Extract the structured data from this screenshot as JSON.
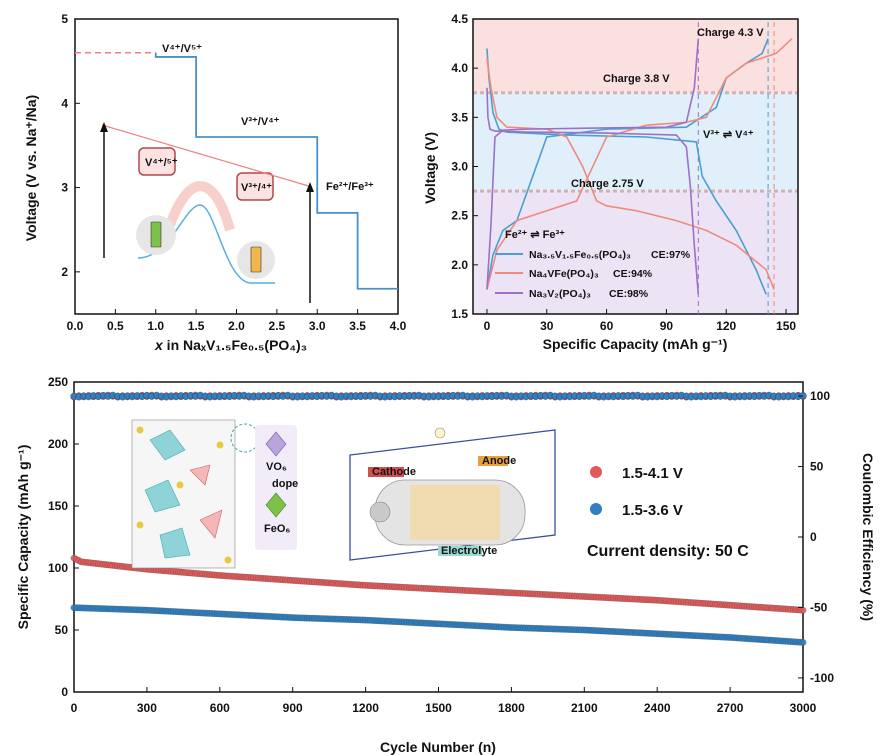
{
  "chart_data": [
    {
      "type": "line",
      "ylabel": "Voltage (V vs. Na⁺/Na)",
      "xlabel_prefix": "x",
      "xlabel_text": " in NaₓV₁.₅Fe₀.₅(PO₄)₃",
      "xlim": [
        0,
        4.0
      ],
      "ylim": [
        1.5,
        5
      ],
      "xticks": [
        "0.0",
        "0.5",
        "1.0",
        "1.5",
        "2.0",
        "2.5",
        "3.0",
        "3.5",
        "4.0"
      ],
      "yticks": [
        "2",
        "3",
        "4",
        "5"
      ],
      "annotations": [
        "V⁴⁺/V⁵⁺",
        "V³⁺/V⁴⁺",
        "Fe²⁺/Fe³⁺",
        "V⁴⁺/⁵⁺",
        "V³⁺/⁴⁺"
      ],
      "series": [
        {
          "x": [
            1.0,
            1.0,
            1.5,
            1.5,
            3.0,
            3.0,
            3.5,
            3.5,
            4.0
          ],
          "y": [
            4.6,
            4.55,
            4.55,
            3.6,
            3.6,
            2.7,
            2.7,
            1.8,
            1.8
          ]
        }
      ],
      "dashed_start": {
        "x": [
          0.0,
          1.0
        ],
        "y": [
          4.6,
          4.6
        ]
      },
      "color": "#4a90c8",
      "dash_color": "#f08080"
    },
    {
      "type": "line",
      "xlabel": "Specific Capacity (mAh g⁻¹)",
      "ylabel": "Voltage (V)",
      "xlim": [
        -7,
        156
      ],
      "ylim": [
        1.5,
        4.5
      ],
      "xticks": [
        "0",
        "30",
        "60",
        "90",
        "120",
        "150"
      ],
      "yticks": [
        "1.5",
        "2.0",
        "2.5",
        "3.0",
        "3.5",
        "4.0",
        "4.5"
      ],
      "annotations": [
        "Charge 4.3 V",
        "Charge 3.8 V",
        "Charge 2.75 V",
        "V³⁺ ⇌ V⁴⁺",
        "Fe²⁺ ⇌ Fe³⁺"
      ],
      "charge_lines": [
        3.75,
        2.75
      ],
      "series": [
        {
          "name": "Na₃.₅V₁.₅Fe₀.₅(PO₄)₃",
          "ce": "CE:97%",
          "color": "#4a9fd0",
          "charge": {
            "x": [
              0,
              3,
              8,
              15,
              30,
              60,
              100,
              115,
              120,
              130,
              138,
              141
            ],
            "y": [
              1.75,
              2.1,
              2.35,
              2.45,
              3.3,
              3.38,
              3.4,
              3.6,
              3.9,
              4.05,
              4.15,
              4.3
            ]
          },
          "discharge": {
            "x": [
              0,
              1,
              3,
              6,
              10,
              40,
              80,
              105,
              108,
              115,
              125,
              135,
              140
            ],
            "y": [
              4.2,
              3.9,
              3.55,
              3.38,
              3.35,
              3.32,
              3.3,
              3.25,
              2.9,
              2.65,
              2.35,
              1.95,
              1.7
            ]
          }
        },
        {
          "name": "Na₄VFe(PO₄)₃",
          "ce": "CE:94%",
          "color": "#f08a7c",
          "charge": {
            "x": [
              0,
              5,
              15,
              30,
              45,
              60,
              80,
              100,
              110,
              120,
              130,
              145,
              153
            ],
            "y": [
              1.75,
              2.15,
              2.45,
              2.55,
              2.65,
              3.3,
              3.42,
              3.45,
              3.5,
              3.9,
              4.05,
              4.15,
              4.3
            ]
          },
          "discharge": {
            "x": [
              0,
              2,
              5,
              10,
              30,
              40,
              48,
              55,
              60,
              75,
              95,
              110,
              125,
              140,
              144
            ],
            "y": [
              4.1,
              3.8,
              3.5,
              3.4,
              3.38,
              3.3,
              3.0,
              2.65,
              2.6,
              2.55,
              2.45,
              2.35,
              2.2,
              1.95,
              1.75
            ]
          }
        },
        {
          "name": "Na₃V₂(PO₄)₃",
          "ce": "CE:98%",
          "color": "#9d6fc9",
          "charge": {
            "x": [
              0,
              2,
              4,
              8,
              20,
              50,
              90,
              100,
              104,
              106
            ],
            "y": [
              1.75,
              2.4,
              3.3,
              3.37,
              3.38,
              3.39,
              3.4,
              3.45,
              3.8,
              4.3
            ]
          },
          "discharge": {
            "x": [
              0,
              0.5,
              1.5,
              4,
              20,
              60,
              95,
              100,
              102,
              104,
              106
            ],
            "y": [
              3.8,
              3.5,
              3.38,
              3.36,
              3.35,
              3.34,
              3.32,
              3.2,
              2.8,
              2.2,
              1.7
            ]
          }
        }
      ]
    },
    {
      "type": "scatter",
      "xlabel": "Cycle Number (n)",
      "ylabel": "Specific Capacity (mAh g⁻¹)",
      "y2label": "Coulombic Efficiency (%)",
      "xlim": [
        0,
        3000
      ],
      "ylim": [
        0,
        250
      ],
      "y2lim": [
        -110,
        110
      ],
      "xticks": [
        "0",
        "300",
        "600",
        "900",
        "1200",
        "1500",
        "1800",
        "2100",
        "2400",
        "2700",
        "3000"
      ],
      "yticks": [
        "0",
        "50",
        "100",
        "150",
        "200",
        "250"
      ],
      "y2ticks": [
        "-100",
        "-50",
        "0",
        "50",
        "100"
      ],
      "current_density": "Current density: 50 C",
      "inset_labels": [
        "VO₆",
        "dope",
        "FeO₆",
        "Cathode",
        "Anode",
        "Electrolyte"
      ],
      "series": [
        {
          "name": "1.5-4.1 V",
          "color": "#e05a5a",
          "capacity": {
            "x": [
              0,
              30,
              300,
              600,
              900,
              1200,
              1500,
              1800,
              2100,
              2400,
              2700,
              3000
            ],
            "y": [
              108,
              105,
              99,
              94,
              90,
              86,
              83,
              80,
              77,
              74,
              70,
              66
            ]
          },
          "ce": 100
        },
        {
          "name": "1.5-3.6 V",
          "color": "#2f7fc1",
          "capacity": {
            "x": [
              0,
              300,
              600,
              900,
              1200,
              1500,
              1800,
              2100,
              2400,
              2700,
              3000
            ],
            "y": [
              68,
              66,
              63,
              60,
              58,
              55,
              52,
              50,
              47,
              44,
              40
            ]
          },
          "ce": 100
        }
      ]
    }
  ]
}
